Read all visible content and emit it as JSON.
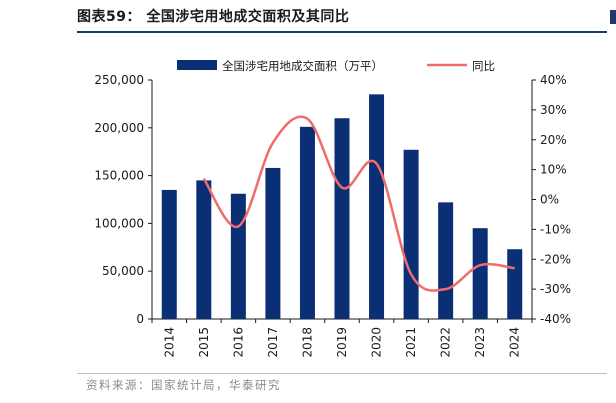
{
  "figure": {
    "title": "图表59： 全国涉宅用地成交面积及其同比",
    "source": "资料来源：国家统计局，华泰研究"
  },
  "colors": {
    "bar": "#0b2f74",
    "line": "#f26b6b",
    "axis": "#1a1a1a",
    "accent": "#1b3a6e"
  },
  "chart_data": {
    "type": "bar",
    "categories": [
      "2014",
      "2015",
      "2016",
      "2017",
      "2018",
      "2019",
      "2020",
      "2021",
      "2022",
      "2023",
      "2024"
    ],
    "series": [
      {
        "name": "全国涉宅用地成交面积（万平）",
        "type": "bar",
        "axis": "left",
        "values": [
          135000,
          145000,
          131000,
          158000,
          201000,
          210000,
          235000,
          177000,
          122000,
          95000,
          73000
        ]
      },
      {
        "name": "同比",
        "type": "line",
        "axis": "right",
        "values": [
          null,
          7,
          -9,
          19,
          27,
          4,
          12,
          -25,
          -30,
          -22,
          -23
        ]
      }
    ],
    "y_left": {
      "lim": [
        0,
        250000
      ],
      "ticks": [
        0,
        50000,
        100000,
        150000,
        200000,
        250000
      ],
      "tick_labels": [
        "0",
        "50,000",
        "100,000",
        "150,000",
        "200,000",
        "250,000"
      ]
    },
    "y_right": {
      "lim": [
        -40,
        40
      ],
      "ticks": [
        -40,
        -30,
        -20,
        -10,
        0,
        10,
        20,
        30,
        40
      ],
      "tick_labels": [
        "-40%",
        "-30%",
        "-20%",
        "-10%",
        "0%",
        "10%",
        "20%",
        "30%",
        "40%"
      ]
    },
    "legend": "top",
    "grid": false
  }
}
